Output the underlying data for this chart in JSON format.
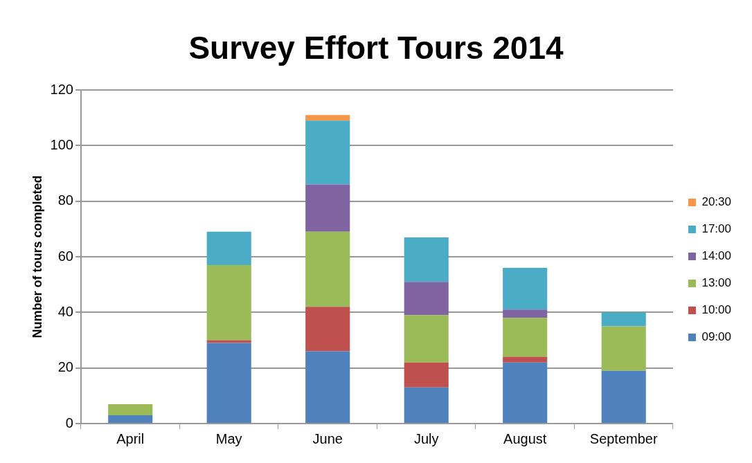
{
  "chart_data": {
    "type": "bar",
    "title": "Survey Effort Tours 2014",
    "ylabel": "Number of tours completed",
    "categories": [
      "April",
      "May",
      "June",
      "July",
      "August",
      "September"
    ],
    "stacked": true,
    "series": [
      {
        "name": "09:00",
        "color": "#4f81bd",
        "values": [
          3,
          29,
          26,
          13,
          22,
          19
        ]
      },
      {
        "name": "10:00",
        "color": "#c0504d",
        "values": [
          0,
          1,
          16,
          9,
          2,
          0
        ]
      },
      {
        "name": "13:00",
        "color": "#9bbb59",
        "values": [
          4,
          27,
          27,
          17,
          14,
          16
        ]
      },
      {
        "name": "14:00",
        "color": "#8064a2",
        "values": [
          0,
          0,
          17,
          12,
          3,
          0
        ]
      },
      {
        "name": "17:00",
        "color": "#4bacc6",
        "values": [
          0,
          12,
          23,
          16,
          15,
          5
        ]
      },
      {
        "name": "20:30",
        "color": "#f79646",
        "values": [
          0,
          0,
          2,
          0,
          0,
          0
        ]
      }
    ],
    "ylim": [
      0,
      120
    ],
    "yticks": [
      0,
      20,
      40,
      60,
      80,
      100,
      120
    ],
    "grid": "y",
    "legend": "right"
  }
}
